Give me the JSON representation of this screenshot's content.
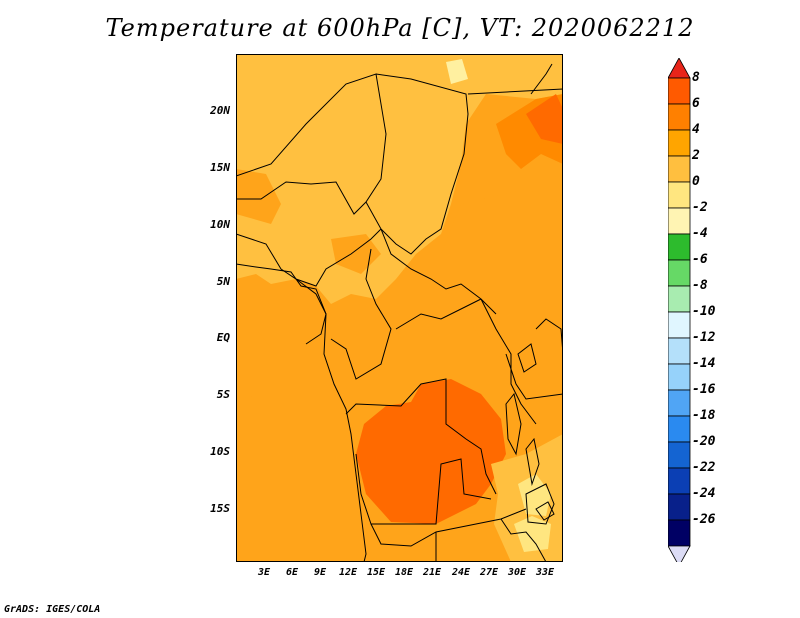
{
  "title": "Temperature at 600hPa [C], VT: 2020062212",
  "credit": "GrADS: IGES/COLA",
  "lat_ticks": [
    "20N",
    "15N",
    "10N",
    "5N",
    "EQ",
    "5S",
    "10S",
    "15S"
  ],
  "lon_ticks": [
    "3E",
    "6E",
    "9E",
    "12E",
    "15E",
    "18E",
    "21E",
    "24E",
    "27E",
    "30E",
    "33E"
  ],
  "colorbar": {
    "labels": [
      "8",
      "6",
      "4",
      "2",
      "0",
      "-2",
      "-4",
      "-6",
      "-8",
      "-10",
      "-12",
      "-14",
      "-16",
      "-18",
      "-20",
      "-22",
      "-24",
      "-26"
    ],
    "colors": [
      "#e8251a",
      "#ff5a00",
      "#ff8000",
      "#ffa500",
      "#ffbf3f",
      "#ffe680",
      "#fff4b3",
      "#2dbb2d",
      "#66d966",
      "#a8ecb0",
      "#e0f6ff",
      "#b4e0fa",
      "#96d2fa",
      "#50a5f5",
      "#2a8af0",
      "#1464d2",
      "#0b3fb4",
      "#08208a",
      "#000064",
      "#dcdcf5"
    ]
  },
  "field_colors": {
    "pale": "#fff0a0",
    "light": "#ffc040",
    "mid": "#ffa41a",
    "orange": "#ff8a00",
    "hot": "#ff6a00"
  }
}
